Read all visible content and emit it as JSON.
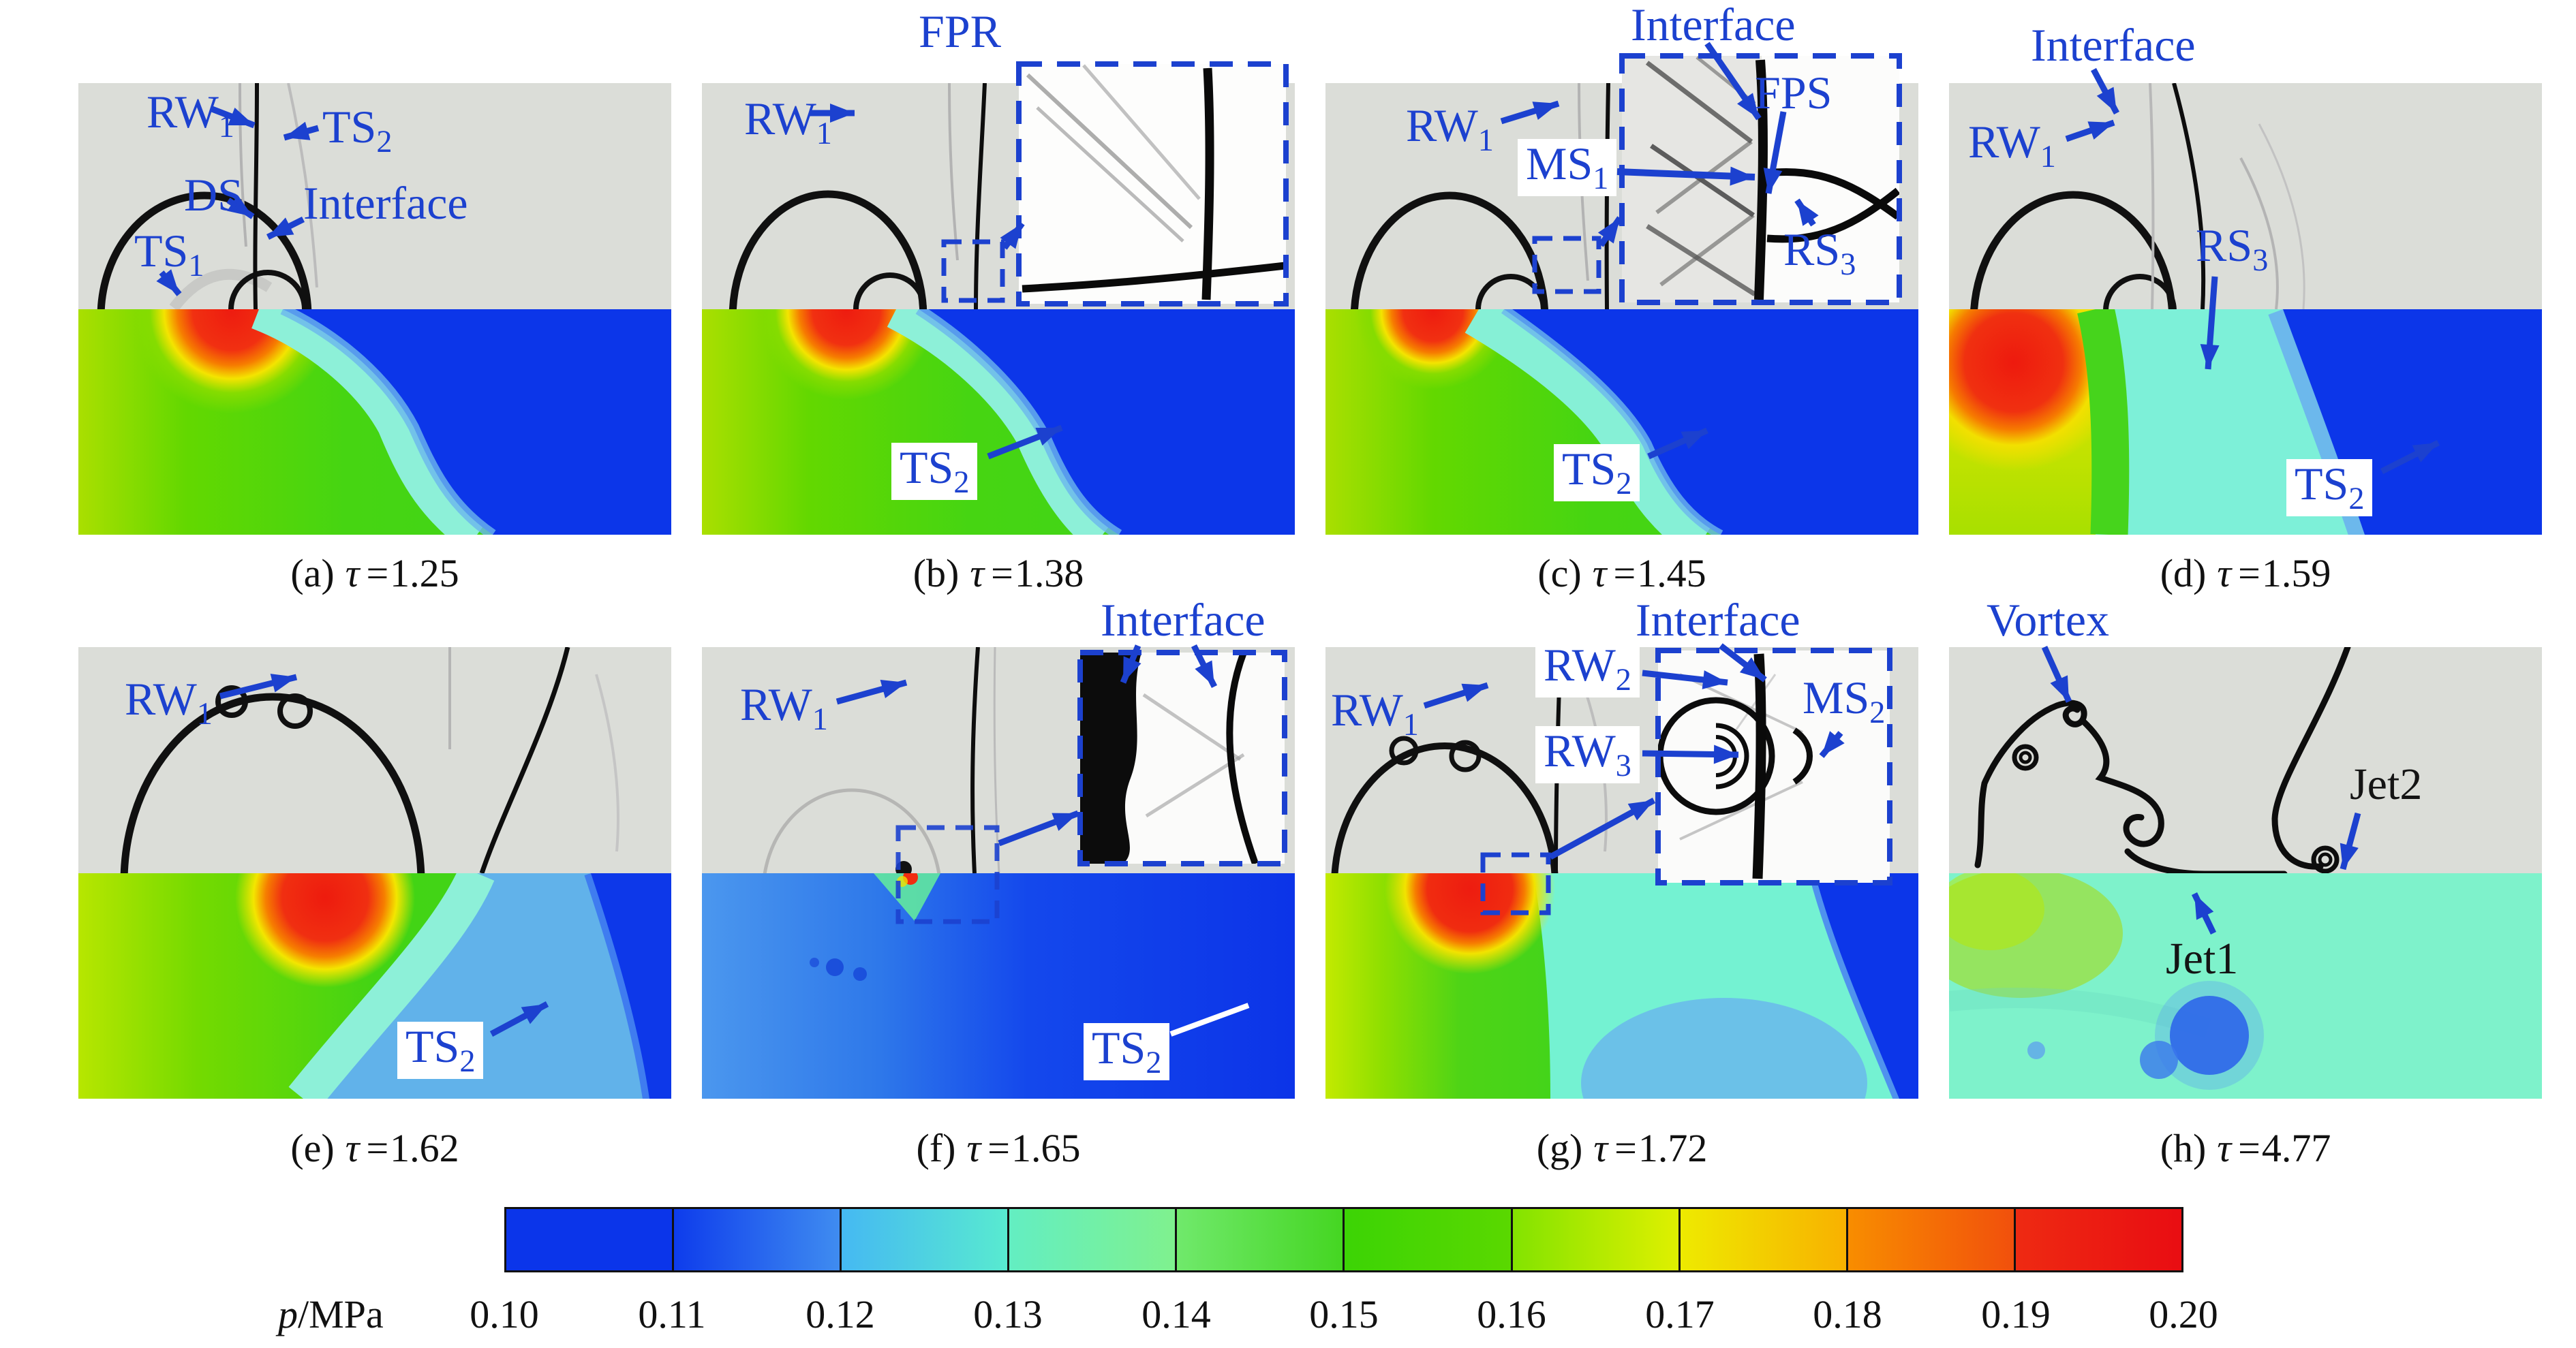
{
  "panels": [
    {
      "id": "a",
      "caption": {
        "index": "(a)",
        "symbol": "τ",
        "eq": "=",
        "value": "1.25"
      },
      "labels": {
        "rw1": {
          "main": "RW",
          "sub": "1"
        },
        "ts2_top": {
          "main": "TS",
          "sub": "2"
        },
        "ds": {
          "main": "DS",
          "sub": ""
        },
        "interface": {
          "main": "Interface",
          "sub": ""
        },
        "ts1": {
          "main": "TS",
          "sub": "1"
        }
      }
    },
    {
      "id": "b",
      "caption": {
        "index": "(b)",
        "symbol": "τ",
        "eq": "=",
        "value": "1.38"
      },
      "labels": {
        "rw1": {
          "main": "RW",
          "sub": "1"
        },
        "fpr": {
          "main": "FPR",
          "sub": ""
        },
        "ts2": {
          "main": "TS",
          "sub": "2"
        }
      }
    },
    {
      "id": "c",
      "caption": {
        "index": "(c)",
        "symbol": "τ",
        "eq": "=",
        "value": "1.45"
      },
      "labels": {
        "rw1": {
          "main": "RW",
          "sub": "1"
        },
        "interface": {
          "main": "Interface",
          "sub": ""
        },
        "fps": {
          "main": "FPS",
          "sub": ""
        },
        "ms1": {
          "main": "MS",
          "sub": "1"
        },
        "rs3": {
          "main": "RS",
          "sub": "3"
        },
        "ts2": {
          "main": "TS",
          "sub": "2"
        }
      }
    },
    {
      "id": "d",
      "caption": {
        "index": "(d)",
        "symbol": "τ",
        "eq": "=",
        "value": "1.59"
      },
      "labels": {
        "interface": {
          "main": "Interface",
          "sub": ""
        },
        "rw1": {
          "main": "RW",
          "sub": "1"
        },
        "rs3": {
          "main": "RS",
          "sub": "3"
        },
        "ts2": {
          "main": "TS",
          "sub": "2"
        }
      }
    },
    {
      "id": "e",
      "caption": {
        "index": "(e)",
        "symbol": "τ",
        "eq": "=",
        "value": "1.62"
      },
      "labels": {
        "rw1": {
          "main": "RW",
          "sub": "1"
        },
        "ts2": {
          "main": "TS",
          "sub": "2"
        }
      }
    },
    {
      "id": "f",
      "caption": {
        "index": "(f)",
        "symbol": "τ",
        "eq": "=",
        "value": "1.65"
      },
      "labels": {
        "rw1": {
          "main": "RW",
          "sub": "1"
        },
        "interface": {
          "main": "Interface",
          "sub": ""
        },
        "ts2": {
          "main": "TS",
          "sub": "2"
        }
      }
    },
    {
      "id": "g",
      "caption": {
        "index": "(g)",
        "symbol": "τ",
        "eq": "=",
        "value": "1.72"
      },
      "labels": {
        "rw1": {
          "main": "RW",
          "sub": "1"
        },
        "interface": {
          "main": "Interface",
          "sub": ""
        },
        "rw2": {
          "main": "RW",
          "sub": "2"
        },
        "ms2": {
          "main": "MS",
          "sub": "2"
        },
        "rw3": {
          "main": "RW",
          "sub": "3"
        }
      }
    },
    {
      "id": "h",
      "caption": {
        "index": "(h)",
        "symbol": "τ",
        "eq": "=",
        "value": "4.77"
      },
      "labels": {
        "vortex": {
          "main": "Vortex",
          "sub": ""
        },
        "jet2": {
          "main": "Jet2",
          "sub": ""
        },
        "jet1": {
          "main": "Jet1",
          "sub": ""
        }
      }
    }
  ],
  "colorbar": {
    "unit": {
      "italic": "p",
      "rest": "/MPa"
    },
    "ticks": [
      "0.10",
      "0.11",
      "0.12",
      "0.13",
      "0.14",
      "0.15",
      "0.16",
      "0.17",
      "0.18",
      "0.19",
      "0.20"
    ],
    "segments": [
      [
        "#0b35ea",
        "#0b35ea"
      ],
      [
        "#0e3cec",
        "#3f8cf0"
      ],
      [
        "#45b9f2",
        "#58ead0"
      ],
      [
        "#63eec2",
        "#7ff18e"
      ],
      [
        "#70e96c",
        "#45d622"
      ],
      [
        "#3cd405",
        "#5ad800"
      ],
      [
        "#83e300",
        "#dff000"
      ],
      [
        "#eeea00",
        "#f8b100"
      ],
      [
        "#f88d00",
        "#f1500c"
      ],
      [
        "#ee2a12",
        "#e90d12"
      ]
    ]
  },
  "colors": {
    "blue": "#1c41cf",
    "schlieren_gray": "#dbddd8",
    "deep_blue": "#0c36e9",
    "cyan_band": "#8df0d8",
    "green_field": "#46d414",
    "red_peak": "#ee1c10",
    "aquamarine": "#7ef2cb"
  }
}
